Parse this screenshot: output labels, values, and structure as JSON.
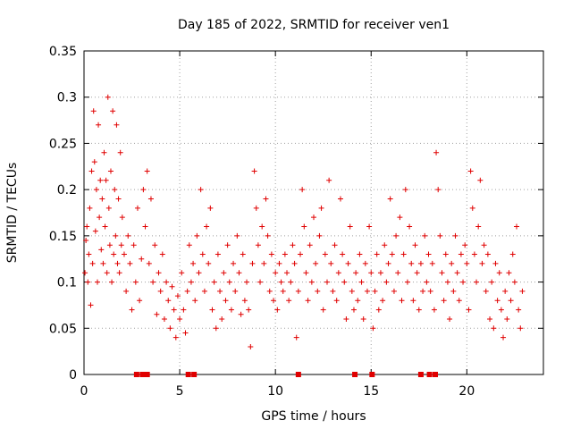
{
  "chart_data": {
    "type": "scatter",
    "title": "Day 185 of 2022, SRMTID for receiver ven1",
    "xlabel": "GPS time / hours",
    "ylabel": "SRMTID / TECUs",
    "xlim": [
      0,
      24
    ],
    "ylim": [
      0,
      0.35
    ],
    "xticks": [
      0,
      5,
      10,
      15,
      20
    ],
    "xtick_labels": [
      "0",
      "5",
      "10",
      "15",
      "20"
    ],
    "yticks": [
      0,
      0.05,
      0.1,
      0.15,
      0.2,
      0.25,
      0.3,
      0.35
    ],
    "ytick_labels": [
      "0",
      "0.05",
      "0.1",
      "0.15",
      "0.2",
      "0.25",
      "0.3",
      "0.35"
    ],
    "grid": true,
    "marker": "plus",
    "color": "#e00000",
    "series": [
      {
        "name": "SRMTID",
        "points": [
          [
            0.05,
            0.11
          ],
          [
            0.1,
            0.145
          ],
          [
            0.15,
            0.16
          ],
          [
            0.2,
            0.1
          ],
          [
            0.25,
            0.13
          ],
          [
            0.3,
            0.18
          ],
          [
            0.35,
            0.075
          ],
          [
            0.4,
            0.22
          ],
          [
            0.45,
            0.12
          ],
          [
            0.5,
            0.285
          ],
          [
            0.55,
            0.23
          ],
          [
            0.6,
            0.155
          ],
          [
            0.65,
            0.2
          ],
          [
            0.7,
            0.1
          ],
          [
            0.75,
            0.27
          ],
          [
            0.8,
            0.17
          ],
          [
            0.85,
            0.21
          ],
          [
            0.9,
            0.135
          ],
          [
            0.95,
            0.19
          ],
          [
            1.0,
            0.12
          ],
          [
            1.05,
            0.24
          ],
          [
            1.1,
            0.16
          ],
          [
            1.15,
            0.21
          ],
          [
            1.2,
            0.11
          ],
          [
            1.25,
            0.3
          ],
          [
            1.3,
            0.18
          ],
          [
            1.35,
            0.14
          ],
          [
            1.4,
            0.22
          ],
          [
            1.45,
            0.1
          ],
          [
            1.5,
            0.285
          ],
          [
            1.55,
            0.13
          ],
          [
            1.6,
            0.2
          ],
          [
            1.65,
            0.15
          ],
          [
            1.7,
            0.27
          ],
          [
            1.75,
            0.12
          ],
          [
            1.8,
            0.19
          ],
          [
            1.85,
            0.11
          ],
          [
            1.9,
            0.24
          ],
          [
            1.95,
            0.14
          ],
          [
            2.0,
            0.17
          ],
          [
            2.1,
            0.13
          ],
          [
            2.2,
            0.09
          ],
          [
            2.3,
            0.15
          ],
          [
            2.4,
            0.12
          ],
          [
            2.5,
            0.07
          ],
          [
            2.6,
            0.14
          ],
          [
            2.7,
            0.1
          ],
          [
            2.8,
            0.18
          ],
          [
            2.9,
            0.08
          ],
          [
            3.0,
            0.125
          ],
          [
            3.1,
            0.2
          ],
          [
            3.2,
            0.16
          ],
          [
            3.3,
            0.22
          ],
          [
            3.4,
            0.12
          ],
          [
            3.5,
            0.19
          ],
          [
            3.6,
            0.1
          ],
          [
            3.7,
            0.14
          ],
          [
            3.8,
            0.065
          ],
          [
            3.9,
            0.11
          ],
          [
            4.0,
            0.09
          ],
          [
            4.1,
            0.13
          ],
          [
            4.2,
            0.06
          ],
          [
            4.3,
            0.1
          ],
          [
            4.4,
            0.08
          ],
          [
            4.5,
            0.05
          ],
          [
            4.6,
            0.095
          ],
          [
            4.7,
            0.07
          ],
          [
            4.8,
            0.04
          ],
          [
            4.9,
            0.085
          ],
          [
            5.0,
            0.06
          ],
          [
            5.1,
            0.11
          ],
          [
            5.2,
            0.07
          ],
          [
            5.3,
            0.045
          ],
          [
            5.4,
            0.09
          ],
          [
            5.5,
            0.14
          ],
          [
            5.6,
            0.1
          ],
          [
            5.7,
            0.12
          ],
          [
            5.8,
            0.08
          ],
          [
            5.9,
            0.15
          ],
          [
            6.0,
            0.11
          ],
          [
            6.1,
            0.2
          ],
          [
            6.2,
            0.13
          ],
          [
            6.3,
            0.09
          ],
          [
            6.4,
            0.16
          ],
          [
            6.5,
            0.12
          ],
          [
            6.6,
            0.18
          ],
          [
            6.7,
            0.07
          ],
          [
            6.8,
            0.1
          ],
          [
            6.9,
            0.05
          ],
          [
            7.0,
            0.13
          ],
          [
            7.1,
            0.09
          ],
          [
            7.2,
            0.06
          ],
          [
            7.3,
            0.11
          ],
          [
            7.4,
            0.08
          ],
          [
            7.5,
            0.14
          ],
          [
            7.6,
            0.1
          ],
          [
            7.7,
            0.07
          ],
          [
            7.8,
            0.12
          ],
          [
            7.9,
            0.09
          ],
          [
            8.0,
            0.15
          ],
          [
            8.1,
            0.11
          ],
          [
            8.2,
            0.065
          ],
          [
            8.3,
            0.13
          ],
          [
            8.4,
            0.08
          ],
          [
            8.5,
            0.1
          ],
          [
            8.6,
            0.07
          ],
          [
            8.7,
            0.03
          ],
          [
            8.8,
            0.12
          ],
          [
            8.9,
            0.22
          ],
          [
            9.0,
            0.18
          ],
          [
            9.1,
            0.14
          ],
          [
            9.2,
            0.1
          ],
          [
            9.3,
            0.16
          ],
          [
            9.4,
            0.12
          ],
          [
            9.5,
            0.19
          ],
          [
            9.6,
            0.15
          ],
          [
            9.7,
            0.09
          ],
          [
            9.8,
            0.13
          ],
          [
            9.9,
            0.08
          ],
          [
            10.0,
            0.11
          ],
          [
            10.1,
            0.07
          ],
          [
            10.2,
            0.12
          ],
          [
            10.3,
            0.1
          ],
          [
            10.4,
            0.09
          ],
          [
            10.5,
            0.13
          ],
          [
            10.6,
            0.11
          ],
          [
            10.7,
            0.08
          ],
          [
            10.8,
            0.1
          ],
          [
            10.9,
            0.14
          ],
          [
            11.0,
            0.12
          ],
          [
            11.1,
            0.04
          ],
          [
            11.2,
            0.09
          ],
          [
            11.3,
            0.13
          ],
          [
            11.4,
            0.2
          ],
          [
            11.5,
            0.16
          ],
          [
            11.6,
            0.11
          ],
          [
            11.7,
            0.08
          ],
          [
            11.8,
            0.14
          ],
          [
            11.9,
            0.1
          ],
          [
            12.0,
            0.17
          ],
          [
            12.1,
            0.12
          ],
          [
            12.2,
            0.09
          ],
          [
            12.3,
            0.15
          ],
          [
            12.4,
            0.18
          ],
          [
            12.5,
            0.07
          ],
          [
            12.6,
            0.13
          ],
          [
            12.7,
            0.1
          ],
          [
            12.8,
            0.21
          ],
          [
            12.9,
            0.12
          ],
          [
            13.0,
            0.09
          ],
          [
            13.1,
            0.14
          ],
          [
            13.2,
            0.08
          ],
          [
            13.3,
            0.11
          ],
          [
            13.4,
            0.19
          ],
          [
            13.5,
            0.13
          ],
          [
            13.6,
            0.1
          ],
          [
            13.7,
            0.06
          ],
          [
            13.8,
            0.12
          ],
          [
            13.9,
            0.16
          ],
          [
            14.0,
            0.09
          ],
          [
            14.1,
            0.07
          ],
          [
            14.2,
            0.11
          ],
          [
            14.3,
            0.08
          ],
          [
            14.4,
            0.13
          ],
          [
            14.5,
            0.1
          ],
          [
            14.6,
            0.06
          ],
          [
            14.7,
            0.12
          ],
          [
            14.8,
            0.09
          ],
          [
            14.9,
            0.16
          ],
          [
            15.0,
            0.11
          ],
          [
            15.1,
            0.05
          ],
          [
            15.2,
            0.09
          ],
          [
            15.3,
            0.13
          ],
          [
            15.4,
            0.07
          ],
          [
            15.5,
            0.11
          ],
          [
            15.6,
            0.08
          ],
          [
            15.7,
            0.14
          ],
          [
            15.8,
            0.1
          ],
          [
            15.9,
            0.12
          ],
          [
            16.0,
            0.19
          ],
          [
            16.1,
            0.13
          ],
          [
            16.2,
            0.09
          ],
          [
            16.3,
            0.15
          ],
          [
            16.4,
            0.11
          ],
          [
            16.5,
            0.17
          ],
          [
            16.6,
            0.08
          ],
          [
            16.7,
            0.13
          ],
          [
            16.8,
            0.2
          ],
          [
            16.9,
            0.1
          ],
          [
            17.0,
            0.16
          ],
          [
            17.1,
            0.12
          ],
          [
            17.2,
            0.08
          ],
          [
            17.3,
            0.14
          ],
          [
            17.4,
            0.11
          ],
          [
            17.5,
            0.07
          ],
          [
            17.6,
            0.12
          ],
          [
            17.7,
            0.09
          ],
          [
            17.8,
            0.15
          ],
          [
            17.9,
            0.1
          ],
          [
            18.0,
            0.13
          ],
          [
            18.1,
            0.09
          ],
          [
            18.2,
            0.12
          ],
          [
            18.3,
            0.07
          ],
          [
            18.4,
            0.24
          ],
          [
            18.5,
            0.2
          ],
          [
            18.6,
            0.15
          ],
          [
            18.7,
            0.11
          ],
          [
            18.8,
            0.08
          ],
          [
            18.9,
            0.13
          ],
          [
            19.0,
            0.1
          ],
          [
            19.1,
            0.06
          ],
          [
            19.2,
            0.12
          ],
          [
            19.3,
            0.09
          ],
          [
            19.4,
            0.15
          ],
          [
            19.5,
            0.11
          ],
          [
            19.6,
            0.08
          ],
          [
            19.7,
            0.13
          ],
          [
            19.8,
            0.1
          ],
          [
            19.9,
            0.14
          ],
          [
            20.0,
            0.12
          ],
          [
            20.1,
            0.07
          ],
          [
            20.2,
            0.22
          ],
          [
            20.3,
            0.18
          ],
          [
            20.4,
            0.13
          ],
          [
            20.5,
            0.1
          ],
          [
            20.6,
            0.16
          ],
          [
            20.7,
            0.21
          ],
          [
            20.8,
            0.12
          ],
          [
            20.9,
            0.14
          ],
          [
            21.0,
            0.09
          ],
          [
            21.1,
            0.13
          ],
          [
            21.2,
            0.06
          ],
          [
            21.3,
            0.1
          ],
          [
            21.4,
            0.05
          ],
          [
            21.5,
            0.12
          ],
          [
            21.6,
            0.08
          ],
          [
            21.7,
            0.11
          ],
          [
            21.8,
            0.07
          ],
          [
            21.9,
            0.04
          ],
          [
            22.0,
            0.09
          ],
          [
            22.1,
            0.06
          ],
          [
            22.2,
            0.11
          ],
          [
            22.3,
            0.08
          ],
          [
            22.4,
            0.13
          ],
          [
            22.5,
            0.1
          ],
          [
            22.6,
            0.16
          ],
          [
            22.7,
            0.07
          ],
          [
            22.8,
            0.05
          ],
          [
            22.9,
            0.09
          ]
        ]
      }
    ],
    "zero_markers": [
      2.75,
      3.05,
      3.3,
      5.45,
      5.75,
      11.2,
      14.15,
      15.05,
      17.6,
      18.05,
      18.35
    ]
  }
}
